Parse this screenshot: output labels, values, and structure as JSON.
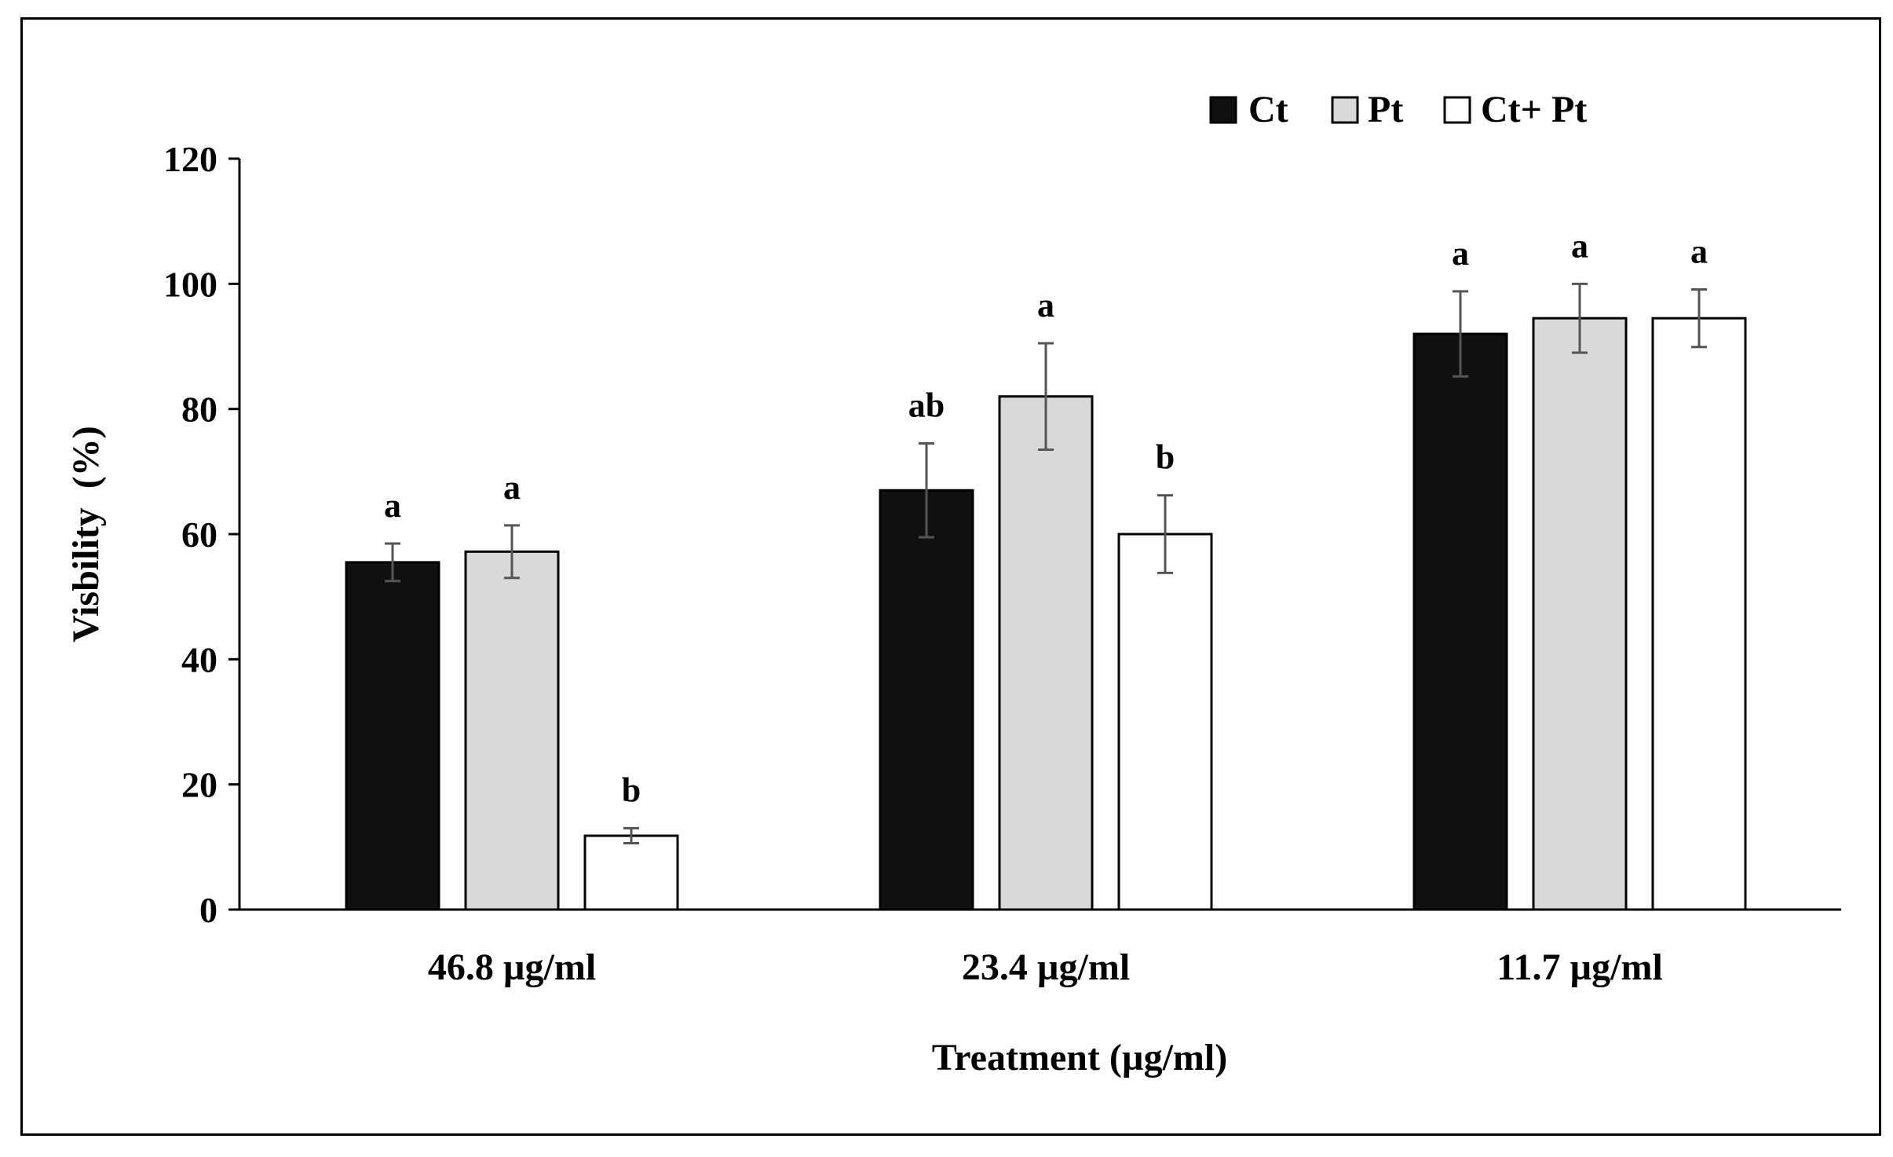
{
  "chart_data": {
    "type": "bar",
    "title": "",
    "xlabel": "Treatment (µg/ml)",
    "ylabel": "Visbility  (%)",
    "ylim": [
      0,
      120
    ],
    "yticks": [
      0,
      20,
      40,
      60,
      80,
      100,
      120
    ],
    "grid": false,
    "legend_position": "top-right",
    "categories": [
      "46.8 µg/ml",
      "23.4 µg/ml",
      "11.7 µg/ml"
    ],
    "series": [
      {
        "name": "Ct",
        "color": "#111111",
        "values": [
          55.5,
          67,
          92
        ],
        "errors": [
          3,
          7.5,
          6.8
        ],
        "labels": [
          "a",
          "ab",
          "a"
        ]
      },
      {
        "name": "Pt",
        "color": "#d9d9d9",
        "values": [
          57.2,
          82,
          94.5
        ],
        "errors": [
          4.2,
          8.5,
          5.5
        ],
        "labels": [
          "a",
          "a",
          "a"
        ]
      },
      {
        "name": "Ct+ Pt",
        "color": "#ffffff",
        "values": [
          11.8,
          60,
          94.5
        ],
        "errors": [
          1.2,
          6.2,
          4.6
        ],
        "labels": [
          "b",
          "b",
          "a"
        ]
      }
    ]
  }
}
